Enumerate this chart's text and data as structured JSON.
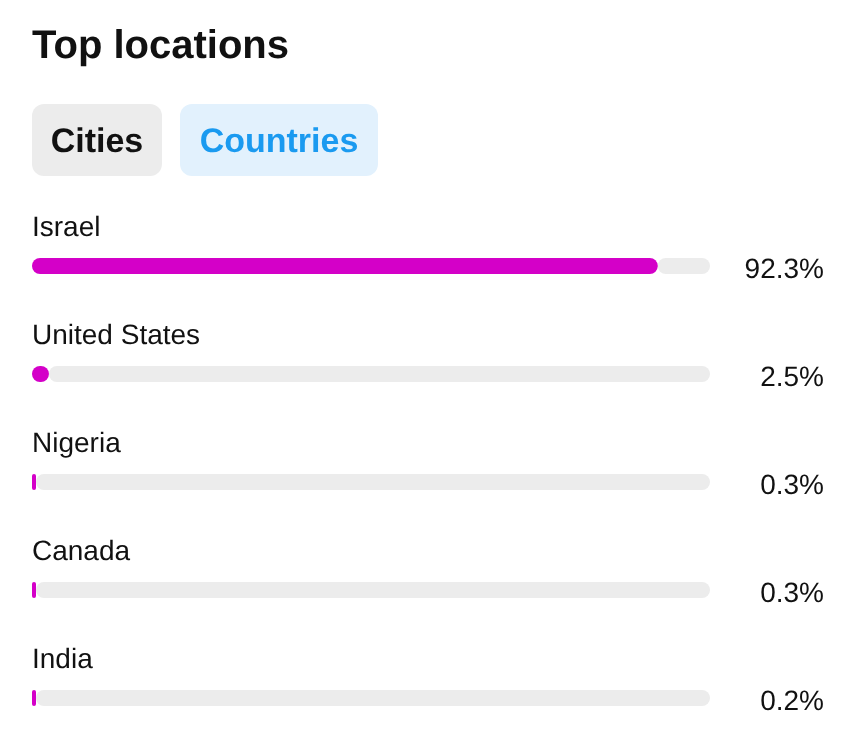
{
  "chart_data": {
    "type": "bar",
    "orientation": "horizontal",
    "title": "Top locations",
    "annotations": [
      "Cities",
      "Countries"
    ],
    "categories": [
      "Israel",
      "United States",
      "Nigeria",
      "Canada",
      "India"
    ],
    "values": [
      92.3,
      2.5,
      0.3,
      0.3,
      0.2
    ],
    "value_labels": [
      "92.3%",
      "2.5%",
      "0.3%",
      "0.3%",
      "0.2%"
    ],
    "color": "#d400c8",
    "xlim": [
      0,
      100
    ],
    "tick_labels": false,
    "grid": false,
    "legend": false
  }
}
